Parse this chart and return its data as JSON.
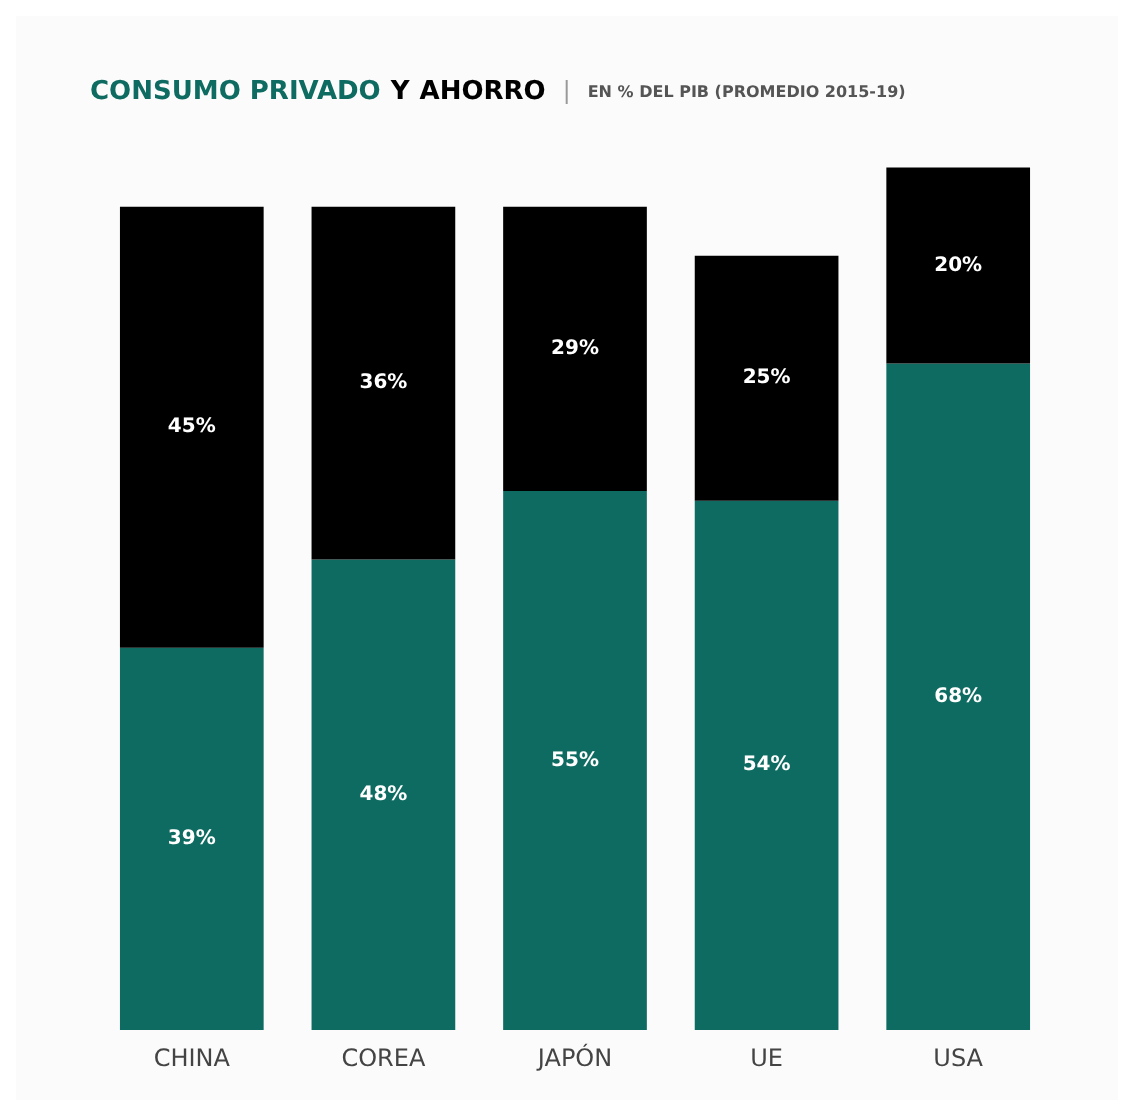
{
  "chart_data": {
    "type": "bar",
    "title": "Y",
    "subtitle": "EN % DEL PIB (PROMEDIO 2015-19)",
    "categories": [
      "CHINA",
      "COREA",
      "JAPÓN",
      "UE",
      "USA"
    ],
    "stacked": true,
    "series": [
      {
        "name": "CONSUMO PRIVADO",
        "color": "#0e6b61",
        "values": [
          39,
          48,
          55,
          54,
          68
        ],
        "value_labels": [
          "39%",
          "48%",
          "55%",
          "54%",
          "68%"
        ]
      },
      {
        "name": "AHORRO",
        "color": "#000000",
        "values": [
          45,
          36,
          29,
          25,
          20
        ],
        "value_labels": [
          "45%",
          "36%",
          "29%",
          "25%",
          "20%"
        ]
      }
    ]
  }
}
